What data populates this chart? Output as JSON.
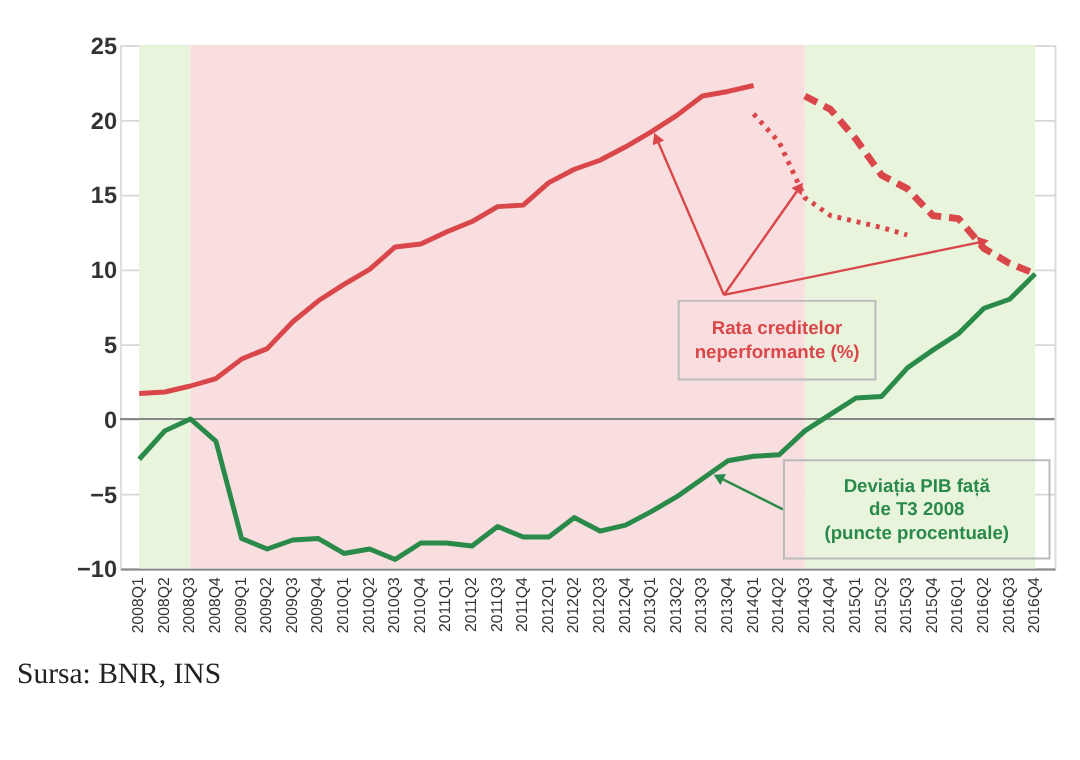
{
  "chart_data": {
    "type": "line",
    "categories": [
      "2008Q1",
      "2008Q2",
      "2008Q3",
      "2008Q4",
      "2009Q1",
      "2009Q2",
      "2009Q3",
      "2009Q4",
      "2010Q1",
      "2010Q2",
      "2010Q3",
      "2010Q4",
      "2011Q1",
      "2011Q2",
      "2011Q3",
      "2011Q4",
      "2012Q1",
      "2012Q2",
      "2012Q3",
      "2012Q4",
      "2013Q1",
      "2013Q2",
      "2013Q3",
      "2013Q4",
      "2014Q1",
      "2014Q2",
      "2014Q3",
      "2014Q4",
      "2015Q1",
      "2015Q2",
      "2015Q3",
      "2015Q4",
      "2016Q1",
      "2016Q2",
      "2016Q3",
      "2016Q4"
    ],
    "series": [
      {
        "color": "#d9474a",
        "line_style": "solid",
        "values": [
          1.7,
          1.8,
          2.2,
          2.7,
          4.0,
          4.7,
          6.5,
          7.9,
          9.0,
          10.0,
          11.5,
          11.7,
          12.5,
          13.2,
          14.2,
          14.3,
          15.8,
          16.7,
          17.3,
          18.2,
          19.2,
          20.3,
          21.6,
          21.9,
          22.3,
          null,
          null,
          null,
          null,
          null,
          null,
          null,
          null,
          null,
          null,
          null
        ]
      },
      {
        "color": "#d9474a",
        "line_style": "dotted",
        "values": [
          null,
          null,
          null,
          null,
          null,
          null,
          null,
          null,
          null,
          null,
          null,
          null,
          null,
          null,
          null,
          null,
          null,
          null,
          null,
          null,
          null,
          null,
          null,
          null,
          20.4,
          18.5,
          14.8,
          13.6,
          13.2,
          12.8,
          12.3,
          null,
          null,
          null,
          null,
          null
        ]
      },
      {
        "color": "#d9474a",
        "line_style": "dashed",
        "values": [
          null,
          null,
          null,
          null,
          null,
          null,
          null,
          null,
          null,
          null,
          null,
          null,
          null,
          null,
          null,
          null,
          null,
          null,
          null,
          null,
          null,
          null,
          null,
          null,
          null,
          null,
          21.6,
          20.7,
          18.7,
          16.3,
          15.4,
          13.6,
          13.4,
          11.4,
          10.4,
          9.7
        ]
      },
      {
        "color": "#2a8a4a",
        "line_style": "solid",
        "values": [
          -2.7,
          -0.8,
          0.0,
          -1.5,
          -8.0,
          -8.7,
          -8.1,
          -8.0,
          -9.0,
          -8.7,
          -9.4,
          -8.3,
          -8.3,
          -8.5,
          -7.2,
          -7.9,
          -7.9,
          -6.6,
          -7.5,
          -7.1,
          -6.2,
          -5.2,
          -4.0,
          -2.8,
          -2.5,
          -2.4,
          -0.8,
          0.3,
          1.4,
          1.5,
          3.4,
          4.6,
          5.7,
          7.4,
          8.0,
          9.7
        ]
      }
    ],
    "ylim": [
      -10,
      25
    ],
    "yticks": [
      -10,
      -5,
      0,
      5,
      10,
      15,
      20,
      25
    ],
    "grid": "y",
    "bands": [
      {
        "axis": "x",
        "from": "2008Q1",
        "to": "2008Q3",
        "color": "#e9f4dd"
      },
      {
        "axis": "x",
        "from": "2008Q3",
        "to": "2014Q3",
        "color": "#f8dede"
      },
      {
        "axis": "x",
        "from": "2014Q3",
        "to": "2016Q4",
        "color": "#e9f4dd"
      }
    ],
    "ref_lines": [
      {
        "axis": "y",
        "value": 0,
        "color": "#888888"
      }
    ],
    "annotations": [
      "Rata creditelor neperformante (%)",
      "Deviația PIB față de T3 2008 (puncte procentuale)",
      "Sursa: BNR, INS"
    ]
  }
}
